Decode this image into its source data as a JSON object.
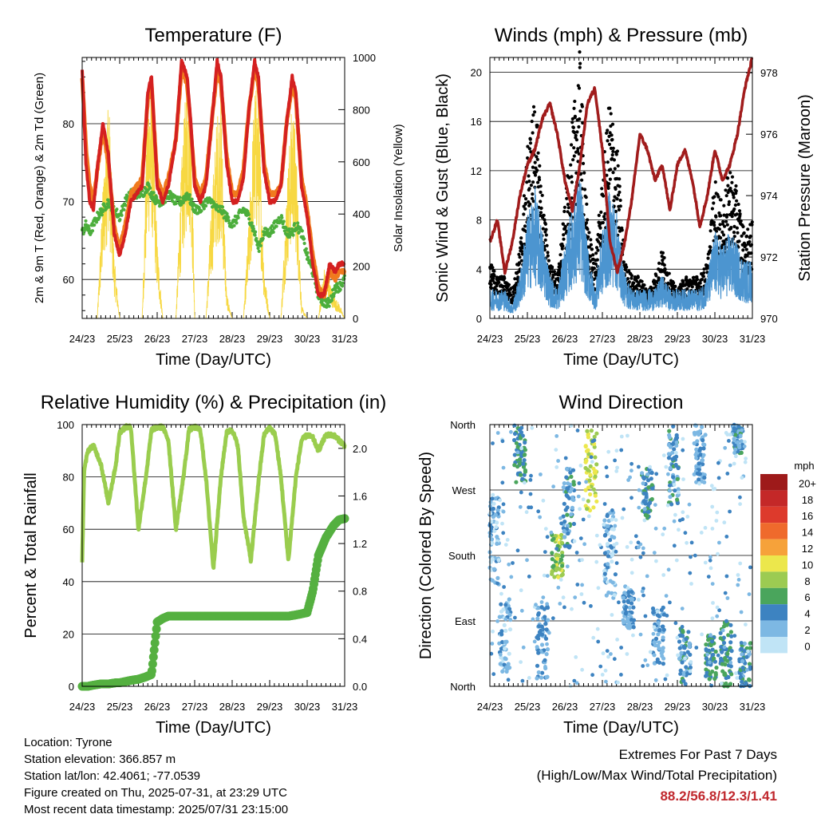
{
  "time_ticks": [
    "24/23",
    "25/23",
    "26/23",
    "27/23",
    "28/23",
    "29/23",
    "30/23",
    "31/23"
  ],
  "info": {
    "location": "Location: Tyrone",
    "elevation": "Station elevation: 366.857 m",
    "latlon": "Station lat/lon: 42.4061; -77.0539",
    "created": "Figure created on Thu, 2025-07-31, at 23:29 UTC",
    "recent": "Most recent data timestamp: 2025/07/31 23:15:00"
  },
  "extremes": {
    "line1": "Extremes For Past 7 Days",
    "line2": "(High/Low/Max Wind/Total Precipitation)",
    "values": "88.2/56.8/12.3/1.41"
  },
  "colors": {
    "red": "#d42020",
    "orange": "#f07a1e",
    "green": "#4cae3c",
    "yellow": "#f7d842",
    "black": "#000000",
    "blue": "#4c95d0",
    "maroon": "#a11c1c",
    "rh": "#9acd4e",
    "rain": "#55b040"
  },
  "chart_data": [
    {
      "type": "line",
      "title": "Temperature (F)",
      "xlabel": "Time (Day/UTC)",
      "ylabel": "2m & 9m T (Red, Orange) & 2m Td (Green)",
      "ylabel_right": "Solar Insolation (Yellow)",
      "x_ticks": [
        "24/23",
        "25/23",
        "26/23",
        "27/23",
        "28/23",
        "29/23",
        "30/23",
        "31/23"
      ],
      "ylim": [
        55,
        88.5
      ],
      "y_ticks": [
        60,
        70,
        80
      ],
      "ylim_right": [
        0,
        1000
      ],
      "y_ticks_right": [
        0,
        200,
        400,
        600,
        800,
        1000
      ],
      "grid": true,
      "days": [
        24,
        24.1,
        24.2,
        24.3,
        24.4,
        24.55,
        24.7,
        24.85,
        25.0,
        25.15,
        25.3,
        25.45,
        25.6,
        25.75,
        25.85,
        26.0,
        26.15,
        26.3,
        26.5,
        26.65,
        26.8,
        26.9,
        27.0,
        27.15,
        27.3,
        27.45,
        27.6,
        27.7,
        27.85,
        28.0,
        28.15,
        28.3,
        28.45,
        28.6,
        28.7,
        28.85,
        29.0,
        29.15,
        29.3,
        29.45,
        29.6,
        29.7,
        29.85,
        30.0,
        30.15,
        30.3,
        30.45,
        30.6,
        30.75,
        30.85,
        31.0
      ],
      "series": [
        {
          "name": "2m T",
          "color": "#d42020",
          "values": [
            87,
            75,
            70,
            69,
            74,
            80,
            76,
            66,
            63,
            66,
            70,
            71,
            72,
            84,
            86,
            72,
            70,
            72,
            78,
            88,
            86,
            80,
            72,
            70,
            72,
            80,
            88,
            86,
            75,
            70,
            70,
            73,
            82,
            88,
            86,
            74,
            70,
            70,
            72,
            80,
            86,
            84,
            72,
            68,
            62,
            58,
            58,
            62,
            61,
            62,
            62
          ]
        },
        {
          "name": "9m T",
          "color": "#f07a1e",
          "values": [
            86,
            77,
            72,
            70,
            74,
            79,
            75,
            67,
            64,
            67,
            71,
            72,
            73,
            83,
            85,
            73,
            71,
            73,
            78,
            87,
            85,
            79,
            73,
            71,
            73,
            80,
            87,
            85,
            76,
            71,
            71,
            74,
            82,
            87,
            85,
            75,
            71,
            71,
            72,
            80,
            85,
            83,
            73,
            69,
            63,
            59,
            58,
            61,
            60,
            61,
            61
          ]
        },
        {
          "name": "2m Td",
          "color": "#4cae3c",
          "values": [
            66,
            67,
            66,
            67,
            68,
            69,
            70,
            69,
            68,
            70,
            71,
            71,
            71,
            72,
            71,
            70,
            70,
            71,
            70,
            70,
            71,
            70,
            69,
            69,
            70,
            70,
            69,
            69,
            68,
            67,
            68,
            69,
            68,
            66,
            64,
            66,
            66,
            67,
            68,
            66,
            66,
            67,
            66,
            63,
            61,
            58,
            57,
            57,
            59,
            59,
            60
          ]
        },
        {
          "name": "Solar Insolation",
          "color": "#f7d842",
          "axis": "right",
          "values": [
            0,
            0,
            0,
            0,
            0,
            500,
            920,
            250,
            0,
            0,
            0,
            0,
            0,
            880,
            950,
            300,
            0,
            0,
            0,
            600,
            980,
            900,
            0,
            0,
            0,
            450,
            800,
            850,
            100,
            0,
            0,
            0,
            400,
            900,
            880,
            200,
            0,
            0,
            0,
            500,
            850,
            700,
            50,
            0,
            0,
            0,
            200,
            150,
            80,
            60,
            0
          ]
        }
      ]
    },
    {
      "type": "scatter",
      "title": "Winds (mph) & Pressure (mb)",
      "xlabel": "Time (Day/UTC)",
      "ylabel": "Sonic Wind & Gust (Blue, Black)",
      "ylabel_right": "Station Pressure (Maroon)",
      "x_ticks": [
        "24/23",
        "25/23",
        "26/23",
        "27/23",
        "28/23",
        "29/23",
        "30/23",
        "31/23"
      ],
      "ylim": [
        0,
        21.2
      ],
      "y_ticks": [
        0,
        4,
        8,
        12,
        16,
        20
      ],
      "ylim_right": [
        970,
        978.5
      ],
      "y_ticks_right": [
        970,
        972,
        974,
        976,
        978
      ],
      "grid": true,
      "days": [
        24,
        24.2,
        24.4,
        24.6,
        24.8,
        25.0,
        25.2,
        25.4,
        25.6,
        25.8,
        26.0,
        26.2,
        26.4,
        26.6,
        26.8,
        27.0,
        27.2,
        27.4,
        27.6,
        27.8,
        28.0,
        28.2,
        28.4,
        28.6,
        28.8,
        29.0,
        29.2,
        29.4,
        29.6,
        29.8,
        30.0,
        30.2,
        30.4,
        30.6,
        30.8,
        31.0
      ],
      "series": [
        {
          "name": "Gust",
          "color": "#000000",
          "values": [
            4,
            3,
            3,
            2,
            5,
            12,
            16,
            9,
            4,
            3,
            8,
            14,
            19,
            7,
            4,
            10,
            16,
            12,
            4,
            3,
            3,
            2,
            3,
            5,
            3,
            2,
            3,
            3,
            3,
            4,
            10,
            8,
            11,
            9,
            6,
            7
          ]
        },
        {
          "name": "Wind",
          "color": "#4c95d0",
          "values": [
            2,
            2,
            2,
            1,
            3,
            7,
            9,
            6,
            3,
            2,
            5,
            8,
            10,
            5,
            2,
            6,
            9,
            7,
            3,
            2,
            2,
            2,
            2,
            3,
            2,
            2,
            2,
            2,
            2,
            3,
            6,
            5,
            6,
            5,
            4,
            4
          ]
        },
        {
          "name": "Pressure",
          "color": "#a11c1c",
          "axis": "right",
          "values": [
            972.5,
            973.2,
            971.5,
            972.5,
            974.0,
            975.0,
            975.5,
            976.5,
            977.0,
            976.0,
            974.5,
            973.5,
            975.0,
            977.0,
            977.5,
            975.5,
            972.5,
            971.5,
            972.5,
            974.0,
            976.0,
            975.5,
            974.5,
            975.0,
            973.5,
            975.0,
            975.5,
            974.5,
            973.0,
            974.0,
            975.5,
            974.5,
            975.0,
            976.0,
            977.5,
            978.5
          ]
        }
      ]
    },
    {
      "type": "line",
      "title": "Relative Humidity (%) & Precipitation (in)",
      "xlabel": "Time (Day/UTC)",
      "ylabel": "Percent & Total Rainfall",
      "x_ticks": [
        "24/23",
        "25/23",
        "26/23",
        "27/23",
        "28/23",
        "29/23",
        "30/23",
        "31/23"
      ],
      "ylim": [
        0,
        100
      ],
      "y_ticks": [
        0,
        20,
        40,
        60,
        80,
        100
      ],
      "ylim_right": [
        0,
        2.2
      ],
      "y_ticks_right": [
        "0.0",
        "0.4",
        "0.8",
        "1.2",
        "1.6",
        "2.0"
      ],
      "grid": true,
      "days": [
        24,
        24.05,
        24.15,
        24.3,
        24.5,
        24.7,
        24.9,
        25.0,
        25.15,
        25.3,
        25.5,
        25.7,
        25.85,
        26.0,
        26.15,
        26.3,
        26.5,
        26.7,
        26.85,
        27.0,
        27.15,
        27.3,
        27.5,
        27.7,
        27.85,
        28.0,
        28.15,
        28.3,
        28.5,
        28.7,
        28.85,
        29.0,
        29.15,
        29.3,
        29.5,
        29.7,
        29.85,
        30.0,
        30.15,
        30.3,
        30.5,
        30.7,
        30.85,
        31.0
      ],
      "series": [
        {
          "name": "RH",
          "color": "#9acd4e",
          "values": [
            48,
            82,
            90,
            92,
            85,
            70,
            85,
            97,
            99,
            99,
            60,
            80,
            98,
            99,
            99,
            94,
            60,
            80,
            98,
            99,
            98,
            80,
            45,
            80,
            97,
            98,
            92,
            65,
            48,
            78,
            96,
            99,
            96,
            80,
            48,
            80,
            94,
            96,
            95,
            90,
            96,
            96,
            94,
            92
          ]
        },
        {
          "name": "Total Rainfall",
          "color": "#55b040",
          "axis": "right",
          "values": [
            0,
            0,
            0,
            0.01,
            0.02,
            0.02,
            0.03,
            0.03,
            0.04,
            0.05,
            0.06,
            0.08,
            0.1,
            0.54,
            0.57,
            0.59,
            0.59,
            0.59,
            0.59,
            0.59,
            0.59,
            0.59,
            0.59,
            0.59,
            0.59,
            0.59,
            0.59,
            0.59,
            0.59,
            0.59,
            0.59,
            0.59,
            0.59,
            0.59,
            0.59,
            0.6,
            0.61,
            0.62,
            0.8,
            1.1,
            1.25,
            1.35,
            1.4,
            1.41
          ]
        }
      ]
    },
    {
      "type": "scatter",
      "title": "Wind Direction",
      "xlabel": "Time (Day/UTC)",
      "ylabel": "Direction (Colored By Speed)",
      "x_ticks": [
        "24/23",
        "25/23",
        "26/23",
        "27/23",
        "28/23",
        "29/23",
        "30/23",
        "31/23"
      ],
      "y_ticks": [
        "North",
        "East",
        "South",
        "West",
        "North"
      ],
      "ylim": [
        0,
        360
      ],
      "grid": true,
      "colorbar": {
        "title": "mph",
        "labels": [
          "20+",
          "18",
          "16",
          "14",
          "12",
          "10",
          "8",
          "6",
          "4",
          "2",
          "0"
        ],
        "colors": [
          "#9e1a1a",
          "#c42828",
          "#dd3a2c",
          "#ef6a2c",
          "#f6a23a",
          "#ece74c",
          "#9ccb52",
          "#4aa55c",
          "#3d83c1",
          "#7db8e3",
          "#c0e4f6"
        ]
      },
      "clusters": [
        {
          "day": 24.1,
          "dir_from": 140,
          "dir_to": 260,
          "speed": 2
        },
        {
          "day": 24.4,
          "dir_from": 20,
          "dir_to": 120,
          "speed": 2
        },
        {
          "day": 24.8,
          "dir_from": 280,
          "dir_to": 360,
          "speed": 5
        },
        {
          "day": 25.4,
          "dir_from": 10,
          "dir_to": 110,
          "speed": 3
        },
        {
          "day": 25.8,
          "dir_from": 150,
          "dir_to": 210,
          "speed": 8
        },
        {
          "day": 26.1,
          "dir_from": 190,
          "dir_to": 300,
          "speed": 4
        },
        {
          "day": 26.7,
          "dir_from": 240,
          "dir_to": 360,
          "speed": 9
        },
        {
          "day": 27.2,
          "dir_from": 120,
          "dir_to": 240,
          "speed": 2
        },
        {
          "day": 27.7,
          "dir_from": 80,
          "dir_to": 140,
          "speed": 3
        },
        {
          "day": 28.2,
          "dir_from": 230,
          "dir_to": 300,
          "speed": 4
        },
        {
          "day": 28.5,
          "dir_from": 30,
          "dir_to": 110,
          "speed": 3
        },
        {
          "day": 28.9,
          "dir_from": 250,
          "dir_to": 360,
          "speed": 4
        },
        {
          "day": 29.2,
          "dir_from": 0,
          "dir_to": 80,
          "speed": 4
        },
        {
          "day": 29.6,
          "dir_from": 280,
          "dir_to": 360,
          "speed": 3
        },
        {
          "day": 29.9,
          "dir_from": 10,
          "dir_to": 70,
          "speed": 5
        },
        {
          "day": 30.3,
          "dir_from": 0,
          "dir_to": 90,
          "speed": 5
        },
        {
          "day": 30.6,
          "dir_from": 320,
          "dir_to": 360,
          "speed": 4
        },
        {
          "day": 30.8,
          "dir_from": 0,
          "dir_to": 60,
          "speed": 4
        }
      ]
    }
  ]
}
